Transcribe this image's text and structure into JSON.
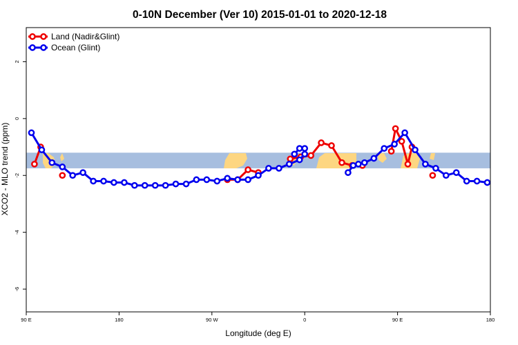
{
  "chart_data": {
    "type": "line",
    "title": "0-10N December (Ver 10)   2015-01-01 to 2020-12-18",
    "xlabel": "Longitude (deg E)",
    "ylabel": "XCO2 - MLO trend (ppm)",
    "xlim": [
      90,
      540
    ],
    "ylim": [
      -6.8,
      3.2
    ],
    "x_ticks": [
      {
        "value": 90,
        "label": "90 E"
      },
      {
        "value": 180,
        "label": "180"
      },
      {
        "value": 270,
        "label": "90 W"
      },
      {
        "value": 360,
        "label": "0"
      },
      {
        "value": 450,
        "label": "90 E"
      },
      {
        "value": 540,
        "label": "180"
      }
    ],
    "y_ticks": [
      {
        "value": -6,
        "label": "-6"
      },
      {
        "value": -4,
        "label": "-4"
      },
      {
        "value": -2,
        "label": "-2"
      },
      {
        "value": 0,
        "label": "0"
      },
      {
        "value": 2,
        "label": "2"
      }
    ],
    "grid": false,
    "legend": "top-left",
    "background_map": {
      "lat_band_y": [
        -1.75,
        -1.2
      ],
      "ocean_color": "#a7bedf",
      "land_color": "#fdd681"
    },
    "series": [
      {
        "name": "Land (Nadir&Glint)",
        "color": "#ee0000",
        "segments": [
          {
            "x": [
              98,
              104
            ],
            "y": [
              -1.6,
              -1.0
            ]
          },
          {
            "x": [
              125
            ],
            "y": [
              -2.0
            ]
          },
          {
            "x": [
              285,
              295,
              305,
              315
            ],
            "y": [
              -2.15,
              -2.15,
              -1.8,
              -1.9
            ]
          },
          {
            "x": [
              346,
              356,
              366,
              376,
              386,
              396,
              406,
              416
            ],
            "y": [
              -1.42,
              -1.35,
              -1.3,
              -0.85,
              -0.95,
              -1.55,
              -1.65,
              -1.65
            ]
          },
          {
            "x": [
              444,
              448,
              454,
              460,
              464
            ],
            "y": [
              -1.15,
              -0.35,
              -0.8,
              -1.6,
              -1.0
            ]
          },
          {
            "x": [
              484
            ],
            "y": [
              -2.0
            ]
          }
        ]
      },
      {
        "name": "Ocean (Glint)",
        "color": "#0000ee",
        "segments": [
          {
            "x": [
              95,
              105,
              115,
              125,
              135,
              145,
              155,
              165,
              175,
              185,
              195,
              205,
              215,
              225,
              235,
              245,
              255,
              265,
              275,
              285,
              295,
              305,
              315,
              325,
              335,
              345,
              355,
              360
            ],
            "y": [
              -0.5,
              -1.1,
              -1.55,
              -1.7,
              -2.0,
              -1.9,
              -2.2,
              -2.2,
              -2.25,
              -2.25,
              -2.35,
              -2.35,
              -2.35,
              -2.35,
              -2.3,
              -2.3,
              -2.15,
              -2.15,
              -2.2,
              -2.1,
              -2.15,
              -2.15,
              -2.0,
              -1.75,
              -1.75,
              -1.6,
              -1.45,
              -1.25
            ]
          },
          {
            "x": [
              350,
              355,
              360
            ],
            "y": [
              -1.25,
              -1.05,
              -1.05
            ]
          },
          {
            "x": [
              402,
              407,
              412,
              418,
              427,
              437,
              447,
              457,
              467,
              477,
              487,
              497,
              507,
              517,
              527,
              537
            ],
            "y": [
              -1.9,
              -1.65,
              -1.6,
              -1.55,
              -1.4,
              -1.05,
              -0.9,
              -0.5,
              -1.1,
              -1.6,
              -1.75,
              -2.0,
              -1.9,
              -2.2,
              -2.2,
              -2.25
            ]
          }
        ]
      }
    ]
  }
}
